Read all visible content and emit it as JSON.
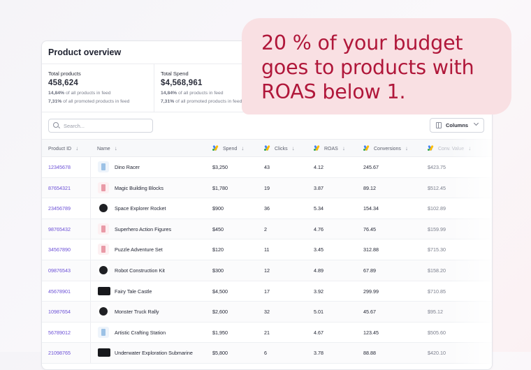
{
  "card": {
    "title": "Product overview"
  },
  "stats": [
    {
      "label": "Total products",
      "value": "458,624",
      "pct1": "14,84%",
      "note1": " of all products in feed",
      "pct2": "7,31%",
      "note2": " of all promoted products in feed"
    },
    {
      "label": "Total Spend",
      "value": "$4,568,961",
      "pct1": "14,84%",
      "note1": " of all products in feed",
      "pct2": "7,31%",
      "note2": " of all promoted products in feed"
    }
  ],
  "search": {
    "placeholder": "Search..."
  },
  "columns_button": {
    "label": "Columns"
  },
  "table": {
    "headers": {
      "product_id": "Product ID",
      "name": "Name",
      "spend": "Spend",
      "clicks": "Clicks",
      "roas": "ROAS",
      "conversions": "Conversions",
      "conv_value": "Conv. Value"
    },
    "rows": [
      {
        "id": "12345678",
        "name": "Dino Racer",
        "thumb": "light",
        "spend": "$3,250",
        "clicks": "43",
        "roas": "4.12",
        "conversions": "245.67",
        "conv_value": "$423.75"
      },
      {
        "id": "87654321",
        "name": "Magic Building Blocks",
        "thumb": "pink",
        "spend": "$1,780",
        "clicks": "19",
        "roas": "3.87",
        "conversions": "89.12",
        "conv_value": "$512.45"
      },
      {
        "id": "23456789",
        "name": "Space Explorer Rocket",
        "thumb": "dark",
        "spend": "$900",
        "clicks": "36",
        "roas": "5.34",
        "conversions": "154.34",
        "conv_value": "$102.89"
      },
      {
        "id": "98765432",
        "name": "Superhero Action Figures",
        "thumb": "pink",
        "spend": "$450",
        "clicks": "2",
        "roas": "4.76",
        "conversions": "76.45",
        "conv_value": "$159.99"
      },
      {
        "id": "34567890",
        "name": "Puzzle Adventure Set",
        "thumb": "pink",
        "spend": "$120",
        "clicks": "11",
        "roas": "3.45",
        "conversions": "312.88",
        "conv_value": "$715.30"
      },
      {
        "id": "09876543",
        "name": "Robot Construction Kit",
        "thumb": "dark",
        "spend": "$300",
        "clicks": "12",
        "roas": "4.89",
        "conversions": "67.89",
        "conv_value": "$158.20"
      },
      {
        "id": "45678901",
        "name": "Fairy Tale Castle",
        "thumb": "wide",
        "spend": "$4,500",
        "clicks": "17",
        "roas": "3.92",
        "conversions": "299.99",
        "conv_value": "$710.85"
      },
      {
        "id": "10987654",
        "name": "Monster Truck Rally",
        "thumb": "dark",
        "spend": "$2,600",
        "clicks": "32",
        "roas": "5.01",
        "conversions": "45.67",
        "conv_value": "$95.12"
      },
      {
        "id": "56789012",
        "name": "Artistic Crafting Station",
        "thumb": "light",
        "spend": "$1,950",
        "clicks": "21",
        "roas": "4.67",
        "conversions": "123.45",
        "conv_value": "$505.60"
      },
      {
        "id": "21098765",
        "name": "Underwater Exploration Submarine",
        "thumb": "wide",
        "spend": "$5,800",
        "clicks": "6",
        "roas": "3.78",
        "conversions": "88.88",
        "conv_value": "$420.10"
      }
    ]
  },
  "callout": {
    "text": "20 % of your budget goes to products with ROAS below 1."
  },
  "colors": {
    "accent": "#6b4fd6",
    "callout_bg": "#f9dfe2",
    "callout_text": "#b0173a"
  }
}
